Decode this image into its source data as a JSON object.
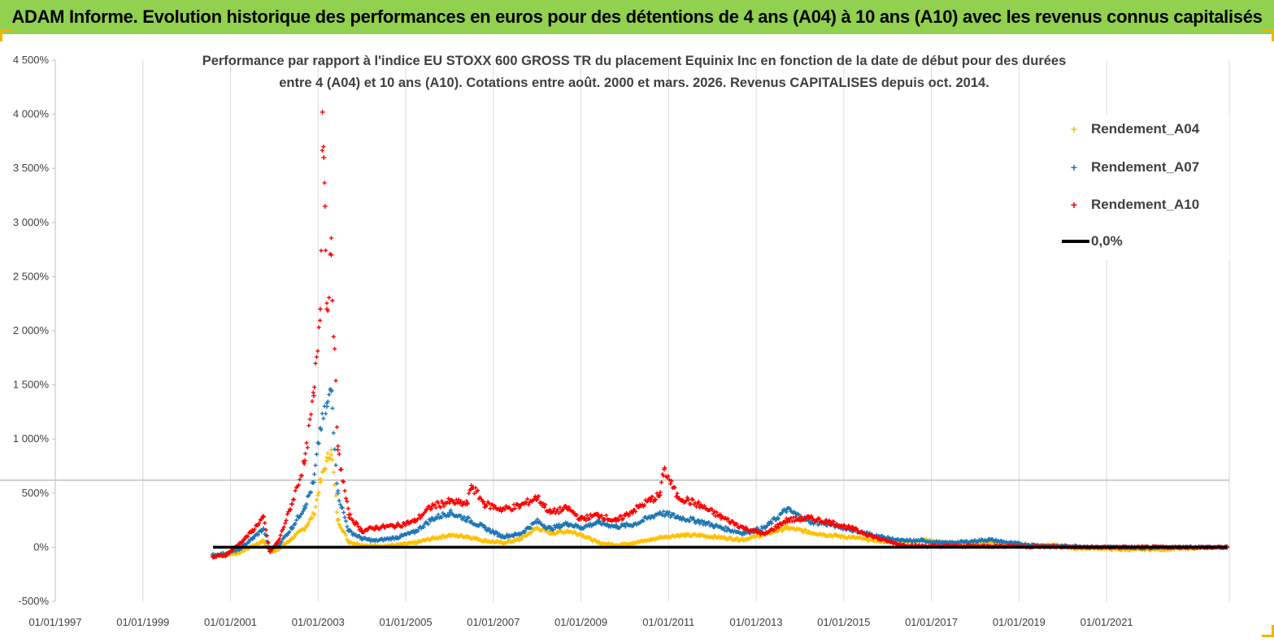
{
  "header": {
    "title": "ADAM Informe. Evolution historique des performances en euros pour des détentions de 4 ans (A04) à 10 ans (A10) avec les revenus connus capitalisés"
  },
  "chart_data": {
    "type": "scatter",
    "title_lines": [
      "Performance par rapport à l'indice EU STOXX 600 GROSS TR  du placement Equinix Inc en fonction de la date de début pour des durées",
      "entre 4 (A04) et 10 ans (A10).  Cotations entre août. 2000 et mars. 2026. Revenus CAPITALISES depuis oct. 2014."
    ],
    "y_tick_labels": [
      "-500%",
      "0%",
      "500%",
      "1 000%",
      "1 500%",
      "2 000%",
      "2 500%",
      "3 000%",
      "3 500%",
      "4 000%",
      "4 500%"
    ],
    "y_ticks": [
      -500,
      0,
      500,
      1000,
      1500,
      2000,
      2500,
      3000,
      3500,
      4000,
      4500
    ],
    "ylim": [
      -500,
      4500
    ],
    "x_tick_labels": [
      "01/01/1997",
      "01/01/1999",
      "01/01/2001",
      "01/01/2003",
      "01/01/2005",
      "01/01/2007",
      "01/01/2009",
      "01/01/2011",
      "01/01/2013",
      "01/01/2015",
      "01/01/2017",
      "01/01/2019",
      "01/01/2021"
    ],
    "x_ticks": [
      1997,
      1999,
      2001,
      2003,
      2005,
      2007,
      2009,
      2011,
      2013,
      2015,
      2017,
      2019,
      2021
    ],
    "xlim": [
      1997,
      2023.8
    ],
    "grid": "vertical",
    "legend_position": "top-right",
    "series": [
      {
        "name": "Rendement_A04",
        "color": "#ffc000",
        "marker": "cross",
        "points": [
          [
            2000.6,
            -80
          ],
          [
            2000.9,
            -70
          ],
          [
            2001.2,
            -50
          ],
          [
            2001.5,
            10
          ],
          [
            2001.75,
            60
          ],
          [
            2001.9,
            -40
          ],
          [
            2002.1,
            -20
          ],
          [
            2002.4,
            80
          ],
          [
            2002.7,
            180
          ],
          [
            2002.9,
            300
          ],
          [
            2003.05,
            600
          ],
          [
            2003.2,
            800
          ],
          [
            2003.3,
            900
          ],
          [
            2003.45,
            250
          ],
          [
            2003.7,
            50
          ],
          [
            2004.0,
            20
          ],
          [
            2004.3,
            10
          ],
          [
            2004.8,
            20
          ],
          [
            2005.2,
            40
          ],
          [
            2005.6,
            80
          ],
          [
            2006.0,
            110
          ],
          [
            2006.4,
            100
          ],
          [
            2006.8,
            60
          ],
          [
            2007.2,
            40
          ],
          [
            2007.6,
            70
          ],
          [
            2008.0,
            180
          ],
          [
            2008.3,
            130
          ],
          [
            2008.7,
            150
          ],
          [
            2009.0,
            120
          ],
          [
            2009.4,
            40
          ],
          [
            2009.8,
            20
          ],
          [
            2010.2,
            40
          ],
          [
            2010.6,
            70
          ],
          [
            2010.8,
            90
          ],
          [
            2011.2,
            110
          ],
          [
            2011.7,
            110
          ],
          [
            2012.2,
            90
          ],
          [
            2012.7,
            70
          ],
          [
            2013.2,
            120
          ],
          [
            2013.7,
            180
          ],
          [
            2014.2,
            140
          ],
          [
            2014.7,
            110
          ],
          [
            2015.2,
            90
          ],
          [
            2015.8,
            60
          ],
          [
            2016.3,
            40
          ],
          [
            2016.8,
            70
          ],
          [
            2017.3,
            40
          ],
          [
            2017.8,
            30
          ],
          [
            2018.3,
            40
          ],
          [
            2018.8,
            30
          ],
          [
            2019.3,
            20
          ],
          [
            2019.8,
            20
          ],
          [
            2020.3,
            -10
          ],
          [
            2020.8,
            -10
          ],
          [
            2021.3,
            -20
          ],
          [
            2021.8,
            -20
          ],
          [
            2022.3,
            -20
          ],
          [
            2022.8,
            -10
          ],
          [
            2023.3,
            -5
          ],
          [
            2023.75,
            0
          ]
        ]
      },
      {
        "name": "Rendement_A07",
        "color": "#1f77b4",
        "marker": "cross",
        "points": [
          [
            2000.6,
            -70
          ],
          [
            2000.9,
            -60
          ],
          [
            2001.2,
            -20
          ],
          [
            2001.5,
            80
          ],
          [
            2001.75,
            170
          ],
          [
            2001.9,
            -20
          ],
          [
            2002.1,
            20
          ],
          [
            2002.4,
            180
          ],
          [
            2002.7,
            380
          ],
          [
            2002.9,
            600
          ],
          [
            2003.05,
            1100
          ],
          [
            2003.2,
            1300
          ],
          [
            2003.3,
            1450
          ],
          [
            2003.45,
            500
          ],
          [
            2003.7,
            150
          ],
          [
            2004.0,
            80
          ],
          [
            2004.3,
            60
          ],
          [
            2004.8,
            90
          ],
          [
            2005.2,
            140
          ],
          [
            2005.6,
            260
          ],
          [
            2006.0,
            320
          ],
          [
            2006.4,
            260
          ],
          [
            2006.8,
            180
          ],
          [
            2007.2,
            100
          ],
          [
            2007.6,
            120
          ],
          [
            2008.0,
            240
          ],
          [
            2008.3,
            170
          ],
          [
            2008.7,
            220
          ],
          [
            2009.0,
            180
          ],
          [
            2009.4,
            230
          ],
          [
            2009.8,
            190
          ],
          [
            2010.2,
            210
          ],
          [
            2010.6,
            280
          ],
          [
            2010.8,
            320
          ],
          [
            2011.2,
            280
          ],
          [
            2011.7,
            240
          ],
          [
            2012.2,
            180
          ],
          [
            2012.7,
            130
          ],
          [
            2013.2,
            180
          ],
          [
            2013.7,
            350
          ],
          [
            2014.2,
            240
          ],
          [
            2014.7,
            210
          ],
          [
            2015.2,
            160
          ],
          [
            2015.8,
            100
          ],
          [
            2016.3,
            60
          ],
          [
            2016.8,
            60
          ],
          [
            2017.3,
            40
          ],
          [
            2017.8,
            50
          ],
          [
            2018.3,
            70
          ],
          [
            2018.8,
            40
          ],
          [
            2019.3,
            20
          ],
          [
            2019.8,
            10
          ],
          [
            2020.3,
            10
          ],
          [
            2020.8,
            0
          ],
          [
            2021.3,
            0
          ],
          [
            2021.8,
            -5
          ],
          [
            2022.3,
            0
          ],
          [
            2022.8,
            0
          ],
          [
            2023.3,
            0
          ],
          [
            2023.75,
            0
          ]
        ]
      },
      {
        "name": "Rendement_A10",
        "color": "#ff0000",
        "marker": "cross",
        "points": [
          [
            2000.6,
            -90
          ],
          [
            2000.9,
            -70
          ],
          [
            2001.2,
            30
          ],
          [
            2001.5,
            150
          ],
          [
            2001.75,
            280
          ],
          [
            2001.9,
            -40
          ],
          [
            2002.1,
            60
          ],
          [
            2002.4,
            400
          ],
          [
            2002.7,
            800
          ],
          [
            2002.9,
            1400
          ],
          [
            2003.05,
            2200
          ],
          [
            2003.1,
            4020
          ],
          [
            2003.13,
            3600
          ],
          [
            2003.16,
            3150
          ],
          [
            2003.2,
            2200
          ],
          [
            2003.3,
            2700
          ],
          [
            2003.45,
            900
          ],
          [
            2003.7,
            300
          ],
          [
            2004.0,
            150
          ],
          [
            2004.3,
            180
          ],
          [
            2004.8,
            200
          ],
          [
            2005.2,
            240
          ],
          [
            2005.6,
            380
          ],
          [
            2006.0,
            420
          ],
          [
            2006.4,
            400
          ],
          [
            2006.5,
            570
          ],
          [
            2006.8,
            400
          ],
          [
            2007.2,
            350
          ],
          [
            2007.6,
            380
          ],
          [
            2008.0,
            460
          ],
          [
            2008.3,
            320
          ],
          [
            2008.7,
            360
          ],
          [
            2009.0,
            260
          ],
          [
            2009.4,
            300
          ],
          [
            2009.8,
            240
          ],
          [
            2010.2,
            340
          ],
          [
            2010.6,
            440
          ],
          [
            2010.8,
            480
          ],
          [
            2010.9,
            720
          ],
          [
            2011.2,
            470
          ],
          [
            2011.7,
            390
          ],
          [
            2012.2,
            280
          ],
          [
            2012.7,
            180
          ],
          [
            2013.2,
            120
          ],
          [
            2013.7,
            250
          ],
          [
            2014.2,
            270
          ],
          [
            2014.7,
            230
          ],
          [
            2015.2,
            170
          ],
          [
            2015.8,
            80
          ],
          [
            2016.3,
            20
          ],
          [
            2016.8,
            10
          ],
          [
            2017.3,
            10
          ],
          [
            2017.8,
            10
          ],
          [
            2018.3,
            10
          ],
          [
            2018.8,
            10
          ],
          [
            2019.3,
            5
          ],
          [
            2019.8,
            5
          ],
          [
            2020.3,
            0
          ],
          [
            2020.8,
            0
          ],
          [
            2021.3,
            0
          ],
          [
            2021.8,
            0
          ],
          [
            2022.3,
            0
          ],
          [
            2022.8,
            0
          ],
          [
            2023.3,
            0
          ],
          [
            2023.75,
            0
          ]
        ]
      }
    ],
    "reference_line": {
      "name": "0,0%",
      "color": "#000000",
      "y": 0,
      "x_start": 2000.6,
      "x_end": 2023.75
    },
    "horizontal_reference": {
      "y": 620,
      "color": "#bfbfbf"
    }
  }
}
